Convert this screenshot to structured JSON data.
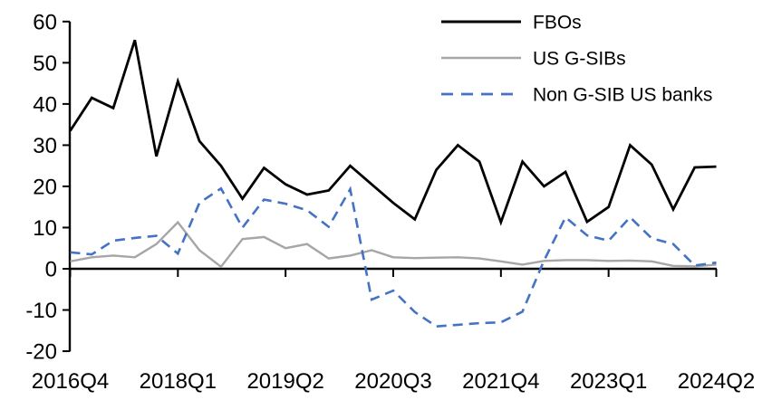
{
  "chart_data": {
    "type": "line",
    "title": "",
    "xlabel": "",
    "ylabel": "",
    "categories": [
      "2016Q4",
      "2017Q1",
      "2017Q2",
      "2017Q3",
      "2017Q4",
      "2018Q1",
      "2018Q2",
      "2018Q3",
      "2018Q4",
      "2019Q1",
      "2019Q2",
      "2019Q3",
      "2019Q4",
      "2020Q1",
      "2020Q2",
      "2020Q3",
      "2020Q4",
      "2021Q1",
      "2021Q2",
      "2021Q3",
      "2021Q4",
      "2022Q1",
      "2022Q2",
      "2022Q3",
      "2022Q4",
      "2023Q1",
      "2023Q2",
      "2023Q3",
      "2023Q4",
      "2024Q1",
      "2024Q2"
    ],
    "series": [
      {
        "name": "FBOs",
        "color": "#000000",
        "dash": "solid",
        "width": 2.8,
        "values": [
          33.5,
          41.5,
          39,
          55.5,
          27.3,
          45.5,
          31,
          25,
          17,
          24.5,
          20.5,
          18,
          19,
          25,
          20.5,
          16,
          12,
          24,
          30,
          26,
          11.3,
          26,
          20,
          23.5,
          11.4,
          15,
          30,
          25.3,
          14.4,
          24.6,
          24.8
        ]
      },
      {
        "name": "US G-SIBs",
        "color": "#a6a6a6",
        "dash": "solid",
        "width": 2.4,
        "values": [
          1.8,
          2.8,
          3.2,
          2.8,
          6,
          11.3,
          4.5,
          0.5,
          7.2,
          7.7,
          5,
          6,
          2.5,
          3.2,
          4.5,
          2.8,
          2.6,
          2.7,
          2.8,
          2.5,
          1.8,
          1,
          1.9,
          2.1,
          2.1,
          1.9,
          2,
          1.8,
          0.7,
          0.6,
          1
        ]
      },
      {
        "name": "Non G-SIB US banks",
        "color": "#4472c4",
        "dash": "dashed",
        "width": 2.6,
        "values": [
          4,
          3.5,
          6.8,
          7.5,
          8,
          3.7,
          16,
          19.5,
          10,
          16.8,
          15.8,
          14.2,
          10.2,
          19.3,
          -7.5,
          -5.3,
          -10.5,
          -14,
          -13.6,
          -13.2,
          -13,
          -10.4,
          2,
          12.5,
          8.1,
          6.8,
          12.5,
          7.4,
          6,
          0.8,
          1.5
        ]
      }
    ],
    "ylim": [
      -20,
      60
    ],
    "yticks": [
      60,
      50,
      40,
      30,
      20,
      10,
      0,
      -10,
      -20
    ],
    "ytick_labels": [
      "60",
      "50",
      "40",
      "30",
      "20",
      "10",
      "0",
      "-10",
      "-20"
    ],
    "xtick_indices": [
      0,
      5,
      10,
      15,
      20,
      25,
      30
    ],
    "xtick_labels": [
      "2016Q4",
      "2018Q1",
      "2019Q2",
      "2020Q3",
      "2021Q4",
      "2023Q1",
      "2024Q2"
    ],
    "grid": false,
    "legend_position": "top-right",
    "axis_color": "#000000",
    "background_color": "#ffffff"
  }
}
